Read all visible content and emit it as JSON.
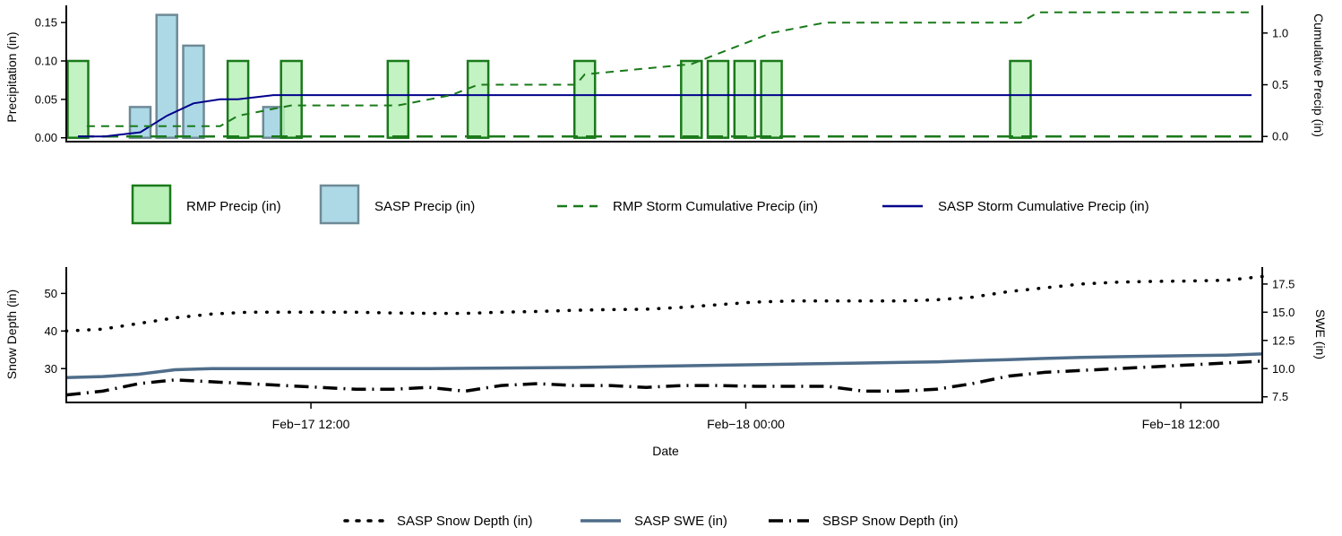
{
  "colors": {
    "rmp_bar_fill": "#b8f0b8",
    "rmp_bar_edge": "#1a7a1a",
    "sasp_bar_fill": "#add8e6",
    "sasp_bar_edge": "#6e8a96",
    "rmp_cum": "#1a7a1a",
    "sasp_cum": "#00008b",
    "sasp_depth": "#000000",
    "sasp_swe": "#4f6d8a",
    "sbsp_depth": "#000000"
  },
  "chart_data": [
    {
      "type": "bar",
      "title": "",
      "ylabel": "Precipitation (in)",
      "ylabel_right": "Cumulative Precip (in)",
      "ylim": [
        -0.005,
        0.17
      ],
      "ylim_right": [
        -0.05,
        1.25
      ],
      "yticks": [
        "0.00",
        "0.05",
        "0.10",
        "0.15"
      ],
      "yticks_right": [
        "0.0",
        "0.5",
        "1.0"
      ],
      "grid": false,
      "legend_position": "below",
      "x_hours": [
        0,
        33
      ],
      "series": [
        {
          "name": "RMP Precip (in)",
          "kind": "bar",
          "x": [
            0,
            4.5,
            6,
            9,
            11.25,
            14.25,
            17.25,
            18,
            18.75,
            19.5,
            26.5
          ],
          "values": [
            0.1,
            0.1,
            0.1,
            0.1,
            0.1,
            0.1,
            0.1,
            0.1,
            0.1,
            0.1,
            0.1
          ]
        },
        {
          "name": "SASP Precip (in)",
          "kind": "bar",
          "x": [
            1.75,
            2.5,
            3.25,
            5.5
          ],
          "values": [
            0.04,
            0.16,
            0.12,
            0.04
          ]
        },
        {
          "name": "RMP Storm Cumulative Precip (in)",
          "kind": "line",
          "axis": "right",
          "x": [
            0.25,
            1.5,
            4,
            4.5,
            6,
            9,
            10.5,
            11.25,
            14,
            14.25,
            17.25,
            18,
            18.75,
            19.5,
            21,
            26.5,
            27,
            33
          ],
          "values": [
            0.1,
            0.1,
            0.1,
            0.2,
            0.3,
            0.3,
            0.4,
            0.5,
            0.5,
            0.6,
            0.7,
            0.8,
            0.9,
            1.0,
            1.1,
            1.1,
            1.2,
            1.2
          ]
        },
        {
          "name": "SASP Storm Cumulative Precip (in)",
          "kind": "line",
          "axis": "right",
          "x": [
            0,
            0.75,
            1.75,
            2.5,
            3.25,
            4,
            4.5,
            5.5,
            6,
            33
          ],
          "values": [
            0.0,
            0.0,
            0.04,
            0.2,
            0.32,
            0.36,
            0.36,
            0.4,
            0.4,
            0.4
          ]
        },
        {
          "name": "",
          "kind": "baseline",
          "axis": "right",
          "x": [
            0,
            33
          ],
          "values": [
            0,
            0
          ]
        }
      ]
    },
    {
      "type": "line",
      "title": "",
      "xlabel": "Date",
      "ylabel": "Snow Depth (in)",
      "ylabel_right": "SWE (in)",
      "ylim": [
        21,
        57
      ],
      "ylim_right": [
        7.0,
        19.0
      ],
      "yticks": [
        "30",
        "40",
        "50"
      ],
      "yticks_right": [
        "7.5",
        "10.0",
        "12.5",
        "15.0",
        "17.5"
      ],
      "xticks": [
        "Feb−17 12:00",
        "Feb−18 00:00",
        "Feb−18 12:00"
      ],
      "xtick_hours": [
        6.75,
        18.75,
        30.75
      ],
      "grid": false,
      "legend_position": "below",
      "x_hours": [
        0,
        33
      ],
      "series": [
        {
          "name": "SASP Snow Depth (in)",
          "axis": "left",
          "x": [
            0,
            1,
            2,
            3,
            4,
            5,
            6,
            7,
            8,
            9,
            10,
            11,
            12,
            13,
            14,
            15,
            16,
            17,
            18,
            19,
            20,
            21,
            22,
            23,
            24,
            25,
            26,
            27,
            28,
            29,
            30,
            31,
            32,
            33
          ],
          "values": [
            40,
            40.5,
            42,
            43.5,
            44.5,
            45,
            45,
            45,
            45,
            44.8,
            44.7,
            44.7,
            45,
            45.2,
            45.5,
            45.7,
            45.8,
            46.3,
            47,
            47.7,
            48,
            48,
            48,
            48,
            48.3,
            49,
            50.5,
            51.5,
            52.5,
            53,
            53.2,
            53.3,
            53.5,
            54.5
          ]
        },
        {
          "name": "SASP SWE (in)",
          "axis": "right",
          "x": [
            0,
            1,
            2,
            3,
            4,
            6,
            8,
            10,
            12,
            14,
            16,
            18,
            20,
            22,
            24,
            25,
            26,
            27,
            28,
            29,
            30,
            31,
            32,
            33
          ],
          "values": [
            9.2,
            9.3,
            9.5,
            9.9,
            10.0,
            10.0,
            10.0,
            10.0,
            10.05,
            10.1,
            10.2,
            10.3,
            10.4,
            10.5,
            10.6,
            10.7,
            10.8,
            10.9,
            11.0,
            11.05,
            11.1,
            11.15,
            11.2,
            11.3
          ]
        },
        {
          "name": "SBSP Snow Depth (in)",
          "axis": "left",
          "x": [
            0,
            1,
            2,
            3,
            4,
            5,
            6,
            7,
            8,
            9,
            10,
            11,
            12,
            13,
            14,
            15,
            16,
            17,
            18,
            19,
            20,
            21,
            22,
            23,
            24,
            25,
            26,
            27,
            28,
            29,
            30,
            31,
            32,
            33
          ],
          "values": [
            23,
            24,
            26,
            27,
            26.5,
            26,
            25.5,
            25,
            24.5,
            24.5,
            25,
            24,
            25.5,
            26,
            25.5,
            25.5,
            25,
            25.5,
            25.5,
            25.3,
            25.3,
            25.3,
            24,
            24,
            24.5,
            26,
            28,
            29,
            29.5,
            30,
            30.5,
            31,
            31.5,
            32
          ]
        }
      ]
    }
  ]
}
